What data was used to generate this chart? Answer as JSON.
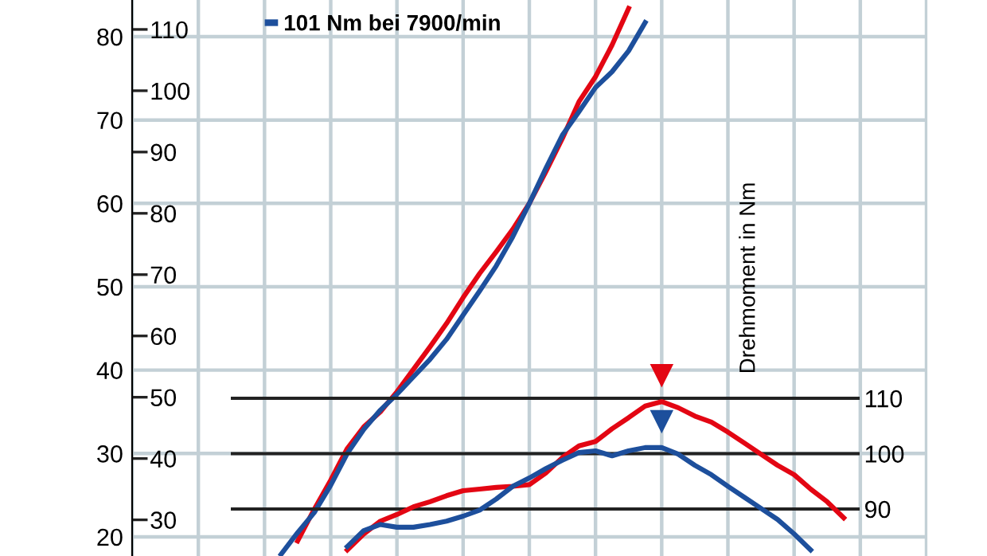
{
  "chart_data": {
    "type": "line",
    "categories": [
      null,
      null,
      null,
      null,
      null,
      null,
      null,
      null,
      null,
      null,
      null,
      null,
      null,
      null,
      null,
      null,
      null,
      null,
      null,
      null,
      null,
      null,
      null,
      null,
      null,
      null,
      null,
      null,
      null,
      null,
      null,
      null,
      null,
      null,
      null,
      null,
      null,
      null,
      null,
      null,
      null,
      null,
      null,
      null,
      null,
      null,
      null,
      null,
      null
    ],
    "series": [
      {
        "color": "#e30613",
        "axis": "y",
        "values": [
          null,
          null,
          null,
          null,
          null,
          null,
          null,
          null,
          null,
          null,
          19.5,
          23.3,
          26.8,
          30.6,
          33.2,
          35.0,
          37.4,
          40.1,
          42.8,
          45.6,
          48.7,
          51.6,
          54.2,
          56.9,
          60.0,
          63.8,
          67.8,
          72.2,
          75.2,
          79.0,
          83.4,
          null,
          null,
          null,
          null,
          null,
          null,
          null,
          null,
          null,
          null,
          null,
          null,
          null,
          null,
          null,
          null,
          null,
          null
        ]
      },
      {
        "color": "#1d4f9c",
        "axis": "y",
        "values": [
          null,
          null,
          null,
          null,
          null,
          null,
          null,
          null,
          null,
          17.9,
          20.5,
          22.9,
          26.2,
          30.0,
          32.9,
          35.2,
          37.1,
          39.2,
          41.3,
          43.7,
          46.6,
          49.5,
          52.5,
          56.0,
          60.0,
          64.2,
          68.2,
          71.0,
          73.9,
          75.8,
          78.3,
          81.7,
          null,
          null,
          null,
          null,
          null,
          null,
          null,
          null,
          null,
          null,
          null,
          null,
          null,
          null,
          null,
          null,
          null
        ]
      },
      {
        "color": "#e30613",
        "axis": "y2",
        "values": [
          null,
          null,
          null,
          null,
          null,
          null,
          null,
          null,
          null,
          null,
          null,
          null,
          null,
          82.6,
          85.5,
          87.8,
          89.0,
          90.4,
          91.3,
          92.4,
          93.3,
          93.6,
          93.9,
          94.1,
          94.4,
          96.5,
          99.3,
          101.4,
          102.2,
          104.5,
          106.5,
          108.6,
          109.4,
          108.3,
          106.8,
          105.7,
          103.9,
          101.9,
          99.9,
          97.9,
          96.2,
          93.6,
          91.3,
          88.4,
          null,
          null,
          null,
          null,
          null
        ]
      },
      {
        "name": "101 Nm bei 7900/min",
        "color": "#1d4f9c",
        "axis": "y2",
        "values": [
          null,
          null,
          null,
          null,
          null,
          null,
          null,
          null,
          null,
          null,
          null,
          null,
          null,
          83.2,
          86.1,
          87.2,
          86.7,
          86.7,
          87.2,
          87.8,
          88.7,
          89.8,
          91.8,
          94.1,
          95.6,
          97.3,
          98.8,
          100.2,
          100.5,
          99.6,
          100.5,
          101.1,
          101.1,
          99.9,
          97.9,
          96.2,
          94.1,
          92.1,
          90.1,
          88.1,
          85.5,
          82.6,
          null,
          null,
          null,
          null,
          null,
          null,
          null
        ]
      }
    ],
    "ylim": [
      17.7,
      84.4
    ],
    "yticks": [
      20,
      30,
      40,
      50,
      60,
      70,
      80
    ],
    "y3lim": [
      24.1,
      114.8
    ],
    "y3ticks": [
      30,
      40,
      50,
      60,
      70,
      80,
      90,
      100,
      110
    ],
    "y2lim": [
      81.5,
      182
    ],
    "y2ticks": [
      90,
      100,
      110
    ],
    "y2label": "Drehmoment in Nm",
    "grid": true,
    "legend": "top left",
    "line_style": "solid",
    "marker": "none",
    "tick_labels": "y"
  }
}
